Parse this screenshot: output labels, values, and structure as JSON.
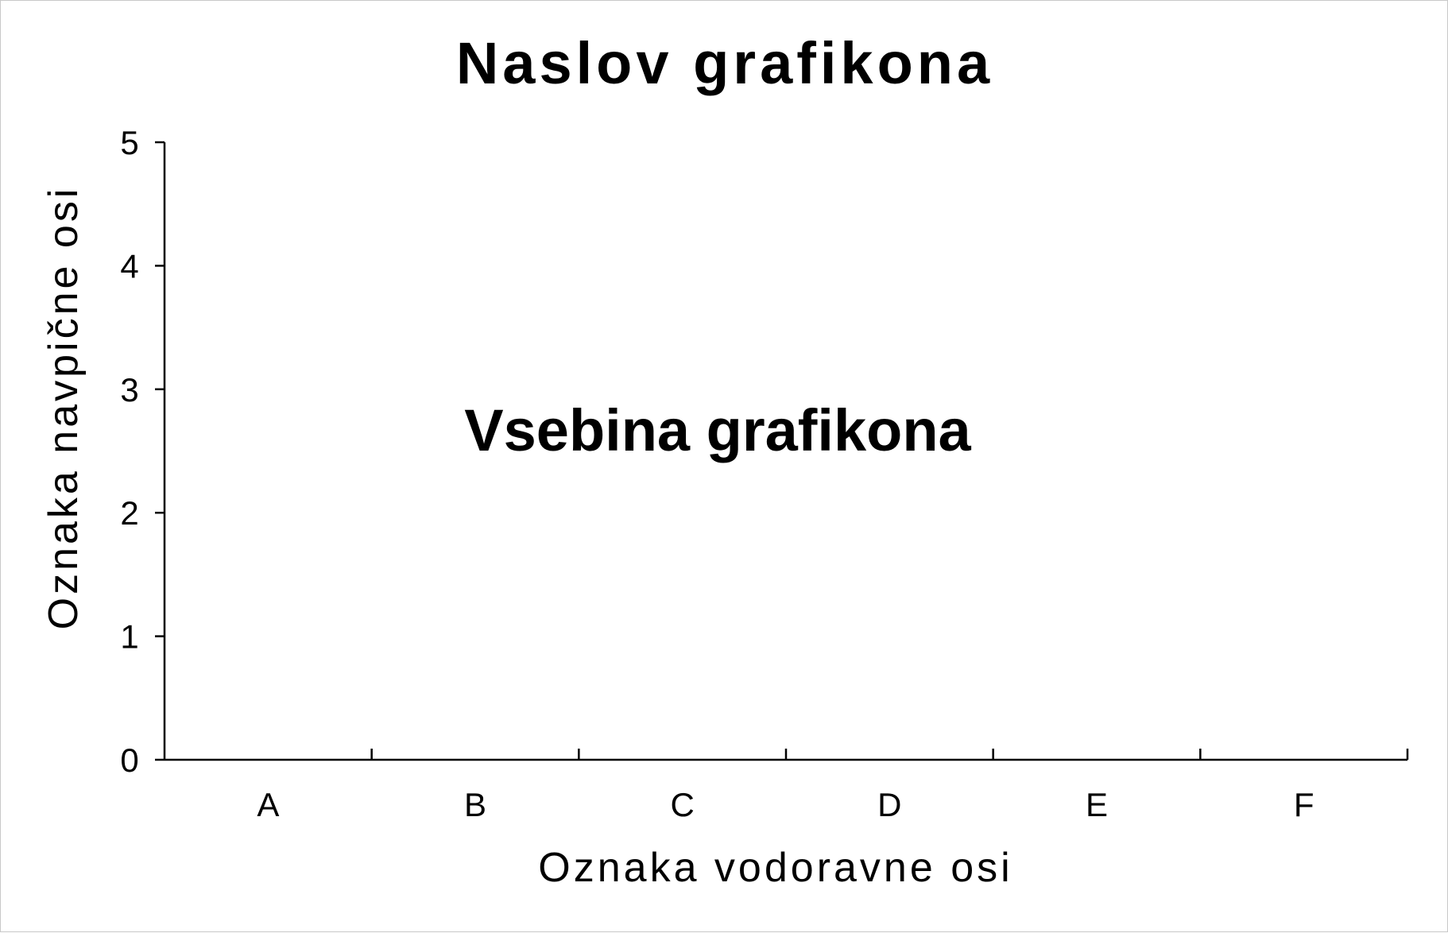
{
  "chart_data": {
    "type": "bar",
    "title": "Naslov grafikona",
    "placeholder_text": "Vsebina grafikona",
    "xlabel": "Oznaka vodoravne osi",
    "ylabel": "Oznaka navpične osi",
    "categories": [
      "A",
      "B",
      "C",
      "D",
      "E",
      "F"
    ],
    "ylim": [
      0,
      5
    ],
    "yticks": [
      "0",
      "1",
      "2",
      "3",
      "4",
      "5"
    ],
    "grid": false,
    "series": []
  }
}
